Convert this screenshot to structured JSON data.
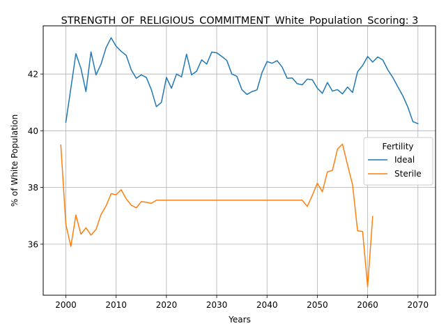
{
  "chart_data": {
    "type": "line",
    "title": "STRENGTH_OF_RELIGIOUS_COMMITMENT_White_Population_Scoring: 3",
    "xlabel": "Years",
    "ylabel": "% of White Population",
    "xlim": [
      1995.5,
      2073.5
    ],
    "ylim": [
      34.2,
      43.7
    ],
    "x_ticks": [
      2000,
      2010,
      2020,
      2030,
      2040,
      2050,
      2060,
      2070
    ],
    "y_ticks": [
      36,
      38,
      40,
      42
    ],
    "grid": true,
    "legend": {
      "title": "Fertility",
      "position": "center-right"
    },
    "series": [
      {
        "name": "Ideal",
        "color": "#1f77b4",
        "x": [
          2000,
          2001,
          2002,
          2003,
          2004,
          2005,
          2006,
          2007,
          2008,
          2009,
          2010,
          2011,
          2012,
          2013,
          2014,
          2015,
          2016,
          2017,
          2018,
          2019,
          2020,
          2021,
          2022,
          2023,
          2024,
          2025,
          2026,
          2027,
          2028,
          2029,
          2030,
          2031,
          2032,
          2033,
          2034,
          2035,
          2036,
          2037,
          2038,
          2039,
          2040,
          2041,
          2042,
          2043,
          2044,
          2045,
          2046,
          2047,
          2048,
          2049,
          2050,
          2051,
          2052,
          2053,
          2054,
          2055,
          2056,
          2057,
          2058,
          2059,
          2060,
          2061,
          2062,
          2063,
          2064,
          2065,
          2066,
          2067,
          2068,
          2069,
          2070
        ],
        "values": [
          40.3,
          41.5,
          42.72,
          42.2,
          41.38,
          42.78,
          41.97,
          42.35,
          42.93,
          43.28,
          42.98,
          42.8,
          42.66,
          42.15,
          41.85,
          41.97,
          41.88,
          41.45,
          40.85,
          41.0,
          41.88,
          41.5,
          42.0,
          41.9,
          42.7,
          41.97,
          42.1,
          42.5,
          42.35,
          42.77,
          42.75,
          42.62,
          42.48,
          42.0,
          41.92,
          41.45,
          41.28,
          41.38,
          41.44,
          42.05,
          42.44,
          42.38,
          42.47,
          42.25,
          41.85,
          41.86,
          41.66,
          41.62,
          41.82,
          41.8,
          41.5,
          41.32,
          41.7,
          41.4,
          41.45,
          41.3,
          41.54,
          41.35,
          42.08,
          42.3,
          42.62,
          42.42,
          42.6,
          42.5,
          42.15,
          41.88,
          41.55,
          41.23,
          40.83,
          40.32,
          40.25
        ]
      },
      {
        "name": "Sterile",
        "color": "#ff7f0e",
        "x": [
          1999,
          2000,
          2001,
          2002,
          2003,
          2004,
          2005,
          2006,
          2007,
          2008,
          2009,
          2010,
          2011,
          2012,
          2013,
          2014,
          2015,
          2016,
          2017,
          2018,
          2019,
          2020,
          2021,
          2022,
          2023,
          2024,
          2025,
          2026,
          2027,
          2028,
          2029,
          2030,
          2031,
          2032,
          2033,
          2034,
          2035,
          2036,
          2037,
          2038,
          2039,
          2040,
          2041,
          2042,
          2043,
          2044,
          2045,
          2046,
          2047,
          2048,
          2049,
          2050,
          2051,
          2052,
          2053,
          2054,
          2055,
          2056,
          2057,
          2058,
          2059,
          2060,
          2061
        ],
        "values": [
          39.5,
          36.7,
          35.92,
          37.03,
          36.35,
          36.58,
          36.32,
          36.52,
          37.05,
          37.35,
          37.78,
          37.74,
          37.92,
          37.6,
          37.38,
          37.28,
          37.5,
          37.48,
          37.44,
          37.55,
          37.55,
          37.55,
          37.55,
          37.55,
          37.55,
          37.55,
          37.55,
          37.55,
          37.55,
          37.55,
          37.55,
          37.55,
          37.55,
          37.55,
          37.55,
          37.55,
          37.55,
          37.55,
          37.55,
          37.55,
          37.55,
          37.55,
          37.55,
          37.55,
          37.55,
          37.55,
          37.55,
          37.55,
          37.55,
          37.33,
          37.72,
          38.15,
          37.85,
          38.55,
          38.6,
          39.35,
          39.53,
          38.8,
          38.1,
          36.47,
          36.45,
          34.5,
          36.98
        ]
      }
    ]
  }
}
